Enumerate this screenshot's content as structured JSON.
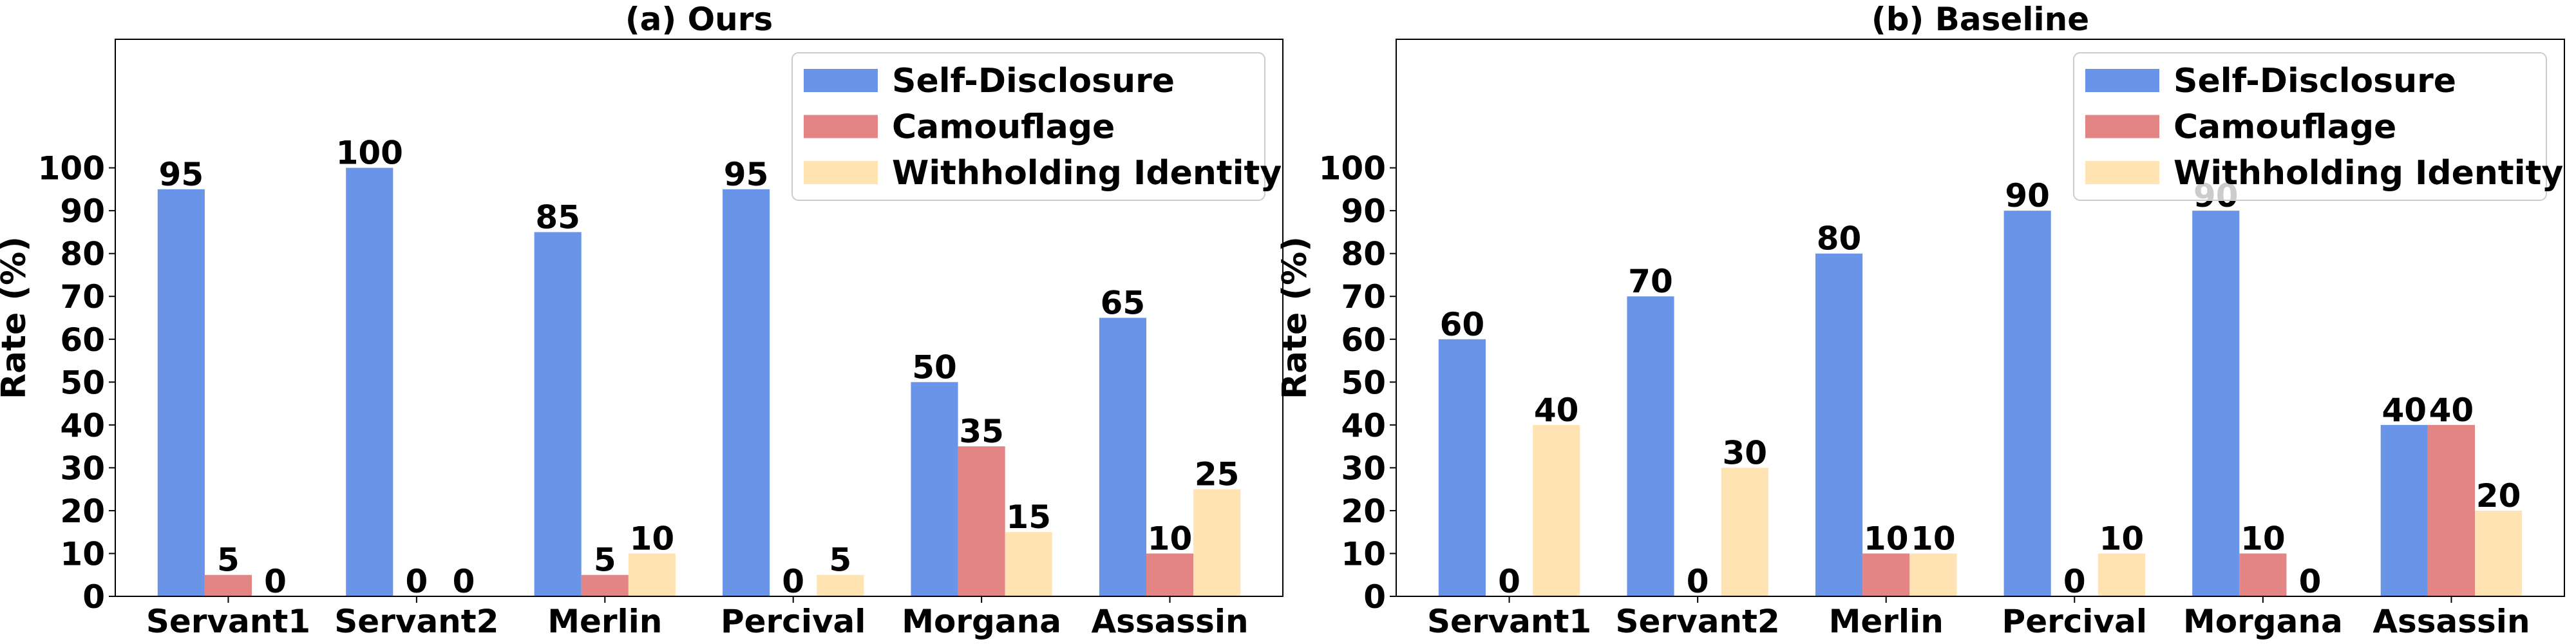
{
  "chart_data": [
    {
      "type": "bar",
      "title": "(a) Ours",
      "y_label": "Rate (%)",
      "categories": [
        "Servant1",
        "Servant2",
        "Merlin",
        "Percival",
        "Morgana",
        "Assassin"
      ],
      "series": [
        {
          "name": "Self-Disclosure",
          "color": "#6a94e8",
          "values": [
            95,
            100,
            85,
            95,
            50,
            65
          ]
        },
        {
          "name": "Camouflage",
          "color": "#e38485",
          "values": [
            5,
            0,
            5,
            0,
            35,
            10
          ]
        },
        {
          "name": "Withholding Identity",
          "color": "#ffe3b2",
          "values": [
            0,
            0,
            10,
            5,
            15,
            25
          ]
        }
      ],
      "ylim": [
        0,
        130
      ],
      "yticks": [
        0,
        10,
        20,
        30,
        40,
        50,
        60,
        70,
        80,
        90,
        100
      ],
      "legend": "upper right"
    },
    {
      "type": "bar",
      "title": "(b) Baseline",
      "y_label": "Rate (%)",
      "categories": [
        "Servant1",
        "Servant2",
        "Merlin",
        "Percival",
        "Morgana",
        "Assassin"
      ],
      "series": [
        {
          "name": "Self-Disclosure",
          "color": "#6a94e8",
          "values": [
            60,
            70,
            80,
            90,
            90,
            40
          ]
        },
        {
          "name": "Camouflage",
          "color": "#e38485",
          "values": [
            0,
            0,
            10,
            0,
            10,
            40
          ]
        },
        {
          "name": "Withholding Identity",
          "color": "#ffe3b2",
          "values": [
            40,
            30,
            10,
            10,
            0,
            20
          ]
        }
      ],
      "ylim": [
        0,
        130
      ],
      "yticks": [
        0,
        10,
        20,
        30,
        40,
        50,
        60,
        70,
        80,
        90,
        100
      ],
      "legend": "upper right"
    }
  ]
}
